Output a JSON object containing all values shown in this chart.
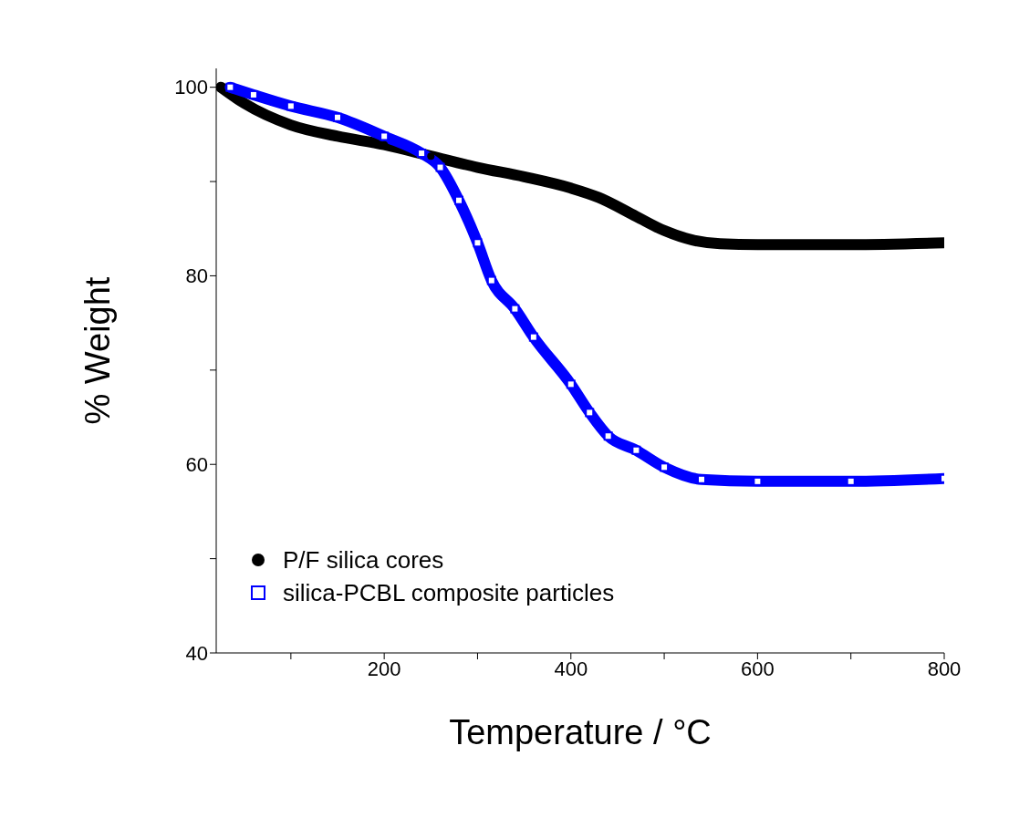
{
  "chart_data": {
    "type": "line",
    "xlabel": "Temperature / °C",
    "ylabel": "% Weight",
    "xlim": [
      20,
      800
    ],
    "xticks": [
      {
        "value": 100,
        "label": null
      },
      200,
      {
        "value": 300,
        "label": null
      },
      400,
      {
        "value": 500,
        "label": null
      },
      600,
      {
        "value": 700,
        "label": null
      },
      800
    ],
    "ylim": [
      40,
      102
    ],
    "yticks": [
      40,
      {
        "value": 50,
        "label": null
      },
      60,
      {
        "value": 70,
        "label": null
      },
      80,
      {
        "value": 90,
        "label": null
      },
      100
    ],
    "grid": false,
    "legend": "bottom left",
    "series": [
      {
        "name": "P/F silica cores",
        "color": "#000000",
        "marker": "circle",
        "x": [
          25,
          50,
          100,
          150,
          200,
          250,
          300,
          350,
          400,
          430,
          470,
          500,
          530,
          560,
          600,
          700,
          800
        ],
        "values": [
          100,
          98.3,
          96,
          94.8,
          93.9,
          92.7,
          91.5,
          90.5,
          89.3,
          88.3,
          86.3,
          84.8,
          83.8,
          83.4,
          83.3,
          83.3,
          83.5
        ]
      },
      {
        "name": "silica-PCBL composite particles",
        "color": "#0000ff",
        "marker": "square",
        "x": [
          35,
          60,
          100,
          150,
          200,
          240,
          260,
          280,
          300,
          315,
          340,
          360,
          400,
          420,
          440,
          470,
          500,
          540,
          600,
          700,
          800
        ],
        "values": [
          100,
          99.2,
          98,
          96.8,
          94.8,
          93,
          91.5,
          88,
          83.5,
          79.5,
          76.5,
          73.5,
          68.5,
          65.5,
          63,
          61.5,
          59.7,
          58.4,
          58.2,
          58.2,
          58.5
        ]
      }
    ]
  }
}
